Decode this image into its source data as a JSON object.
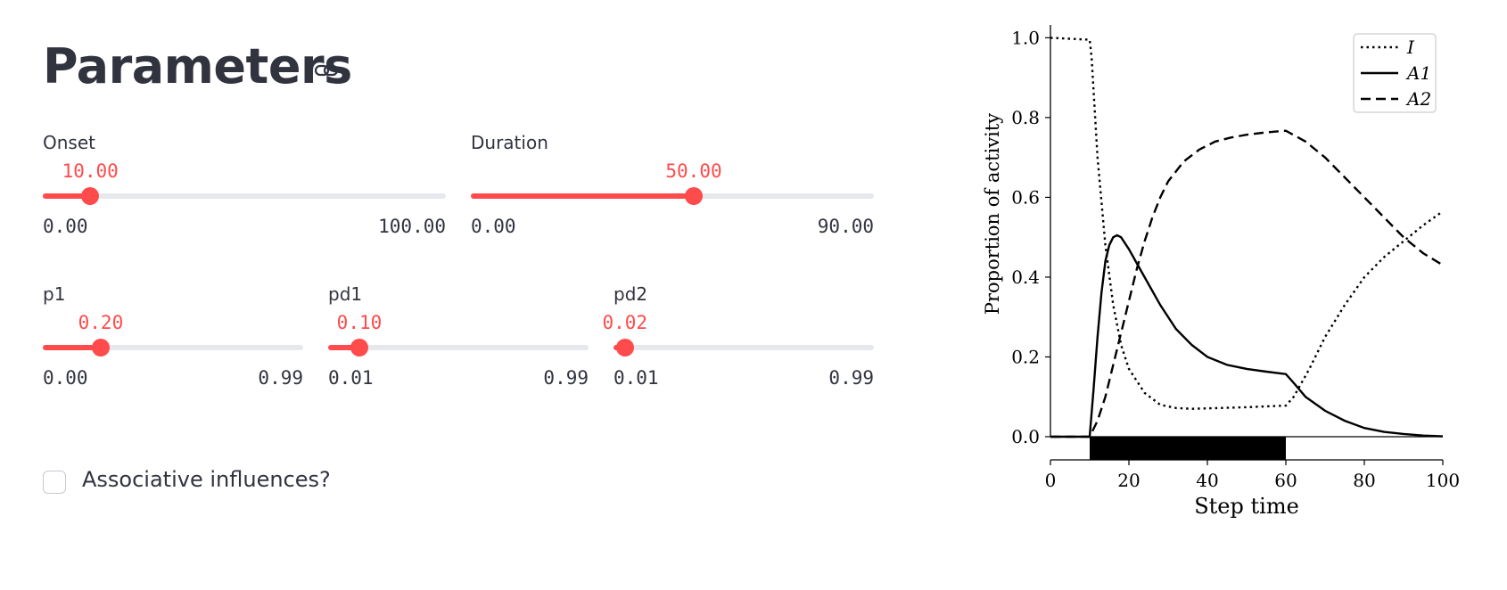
{
  "page": {
    "title": "Parameters"
  },
  "sliders": [
    {
      "id": "onset",
      "label": "Onset",
      "value_label": "10.00",
      "value": 10,
      "min": 0,
      "max": 100,
      "min_label": "0.00",
      "max_label": "100.00"
    },
    {
      "id": "duration",
      "label": "Duration",
      "value_label": "50.00",
      "value": 50,
      "min": 0,
      "max": 90,
      "min_label": "0.00",
      "max_label": "90.00"
    },
    {
      "id": "p1",
      "label": "p1",
      "value_label": "0.20",
      "value": 0.2,
      "min": 0,
      "max": 0.99,
      "min_label": "0.00",
      "max_label": "0.99"
    },
    {
      "id": "pd1",
      "label": "pd1",
      "value_label": "0.10",
      "value": 0.1,
      "min": 0.01,
      "max": 0.99,
      "min_label": "0.01",
      "max_label": "0.99"
    },
    {
      "id": "pd2",
      "label": "pd2",
      "value_label": "0.02",
      "value": 0.02,
      "min": 0.01,
      "max": 0.99,
      "min_label": "0.01",
      "max_label": "0.99"
    }
  ],
  "checkbox": {
    "label": "Associative influences?",
    "checked": false
  },
  "colors": {
    "accent": "#ff4b4b",
    "track": "#e6e8ee",
    "text": "#31333f"
  },
  "icons": {
    "title_anchor": "link-icon"
  },
  "chart_data": [
    {
      "type": "line",
      "ylabel": "Proportion of activity",
      "xlim": [
        0,
        100
      ],
      "ylim": [
        0,
        1.05
      ],
      "yticks": [
        0,
        0.2,
        0.4,
        0.6,
        0.8,
        1.0
      ],
      "ytick_labels": [
        "0.0",
        "0.2",
        "0.4",
        "0.6",
        "0.8",
        "1.0"
      ],
      "grid": false,
      "legend_position": "top-right",
      "series": [
        {
          "name": "I",
          "style": "dotted",
          "x": [
            0,
            10,
            10.5,
            12,
            14,
            16,
            18,
            20,
            24,
            28,
            32,
            36,
            40,
            50,
            60,
            62,
            66,
            70,
            75,
            80,
            85,
            90,
            95,
            100
          ],
          "y": [
            1.0,
            0.995,
            0.95,
            0.7,
            0.48,
            0.33,
            0.23,
            0.17,
            0.11,
            0.08,
            0.072,
            0.07,
            0.071,
            0.074,
            0.078,
            0.1,
            0.17,
            0.25,
            0.33,
            0.4,
            0.45,
            0.49,
            0.53,
            0.565
          ]
        },
        {
          "name": "A1",
          "style": "solid",
          "x": [
            0,
            10,
            11,
            12,
            13,
            14,
            15,
            16,
            17,
            18,
            20,
            24,
            28,
            32,
            36,
            40,
            45,
            50,
            55,
            60,
            62,
            65,
            70,
            75,
            80,
            85,
            90,
            95,
            100
          ],
          "y": [
            0,
            0,
            0.12,
            0.25,
            0.36,
            0.44,
            0.48,
            0.5,
            0.505,
            0.5,
            0.47,
            0.4,
            0.33,
            0.27,
            0.23,
            0.2,
            0.18,
            0.17,
            0.163,
            0.157,
            0.135,
            0.1,
            0.065,
            0.04,
            0.022,
            0.012,
            0.007,
            0.003,
            0.001
          ]
        },
        {
          "name": "A2",
          "style": "dashed",
          "x": [
            0,
            10,
            12,
            14,
            16,
            18,
            20,
            22,
            24,
            26,
            28,
            30,
            34,
            38,
            42,
            46,
            50,
            55,
            60,
            65,
            70,
            75,
            80,
            85,
            90,
            95,
            100
          ],
          "y": [
            0,
            0,
            0.04,
            0.1,
            0.18,
            0.26,
            0.34,
            0.42,
            0.49,
            0.55,
            0.6,
            0.64,
            0.69,
            0.72,
            0.74,
            0.75,
            0.757,
            0.763,
            0.767,
            0.74,
            0.7,
            0.65,
            0.6,
            0.55,
            0.5,
            0.46,
            0.43
          ]
        }
      ]
    },
    {
      "type": "bar",
      "xlabel": "Step time",
      "xlim": [
        0,
        100
      ],
      "xticks": [
        0,
        20,
        40,
        60,
        80,
        100
      ],
      "xtick_labels": [
        "0",
        "20",
        "40",
        "60",
        "80",
        "100"
      ],
      "interval": {
        "start": 10,
        "end": 60
      }
    }
  ]
}
